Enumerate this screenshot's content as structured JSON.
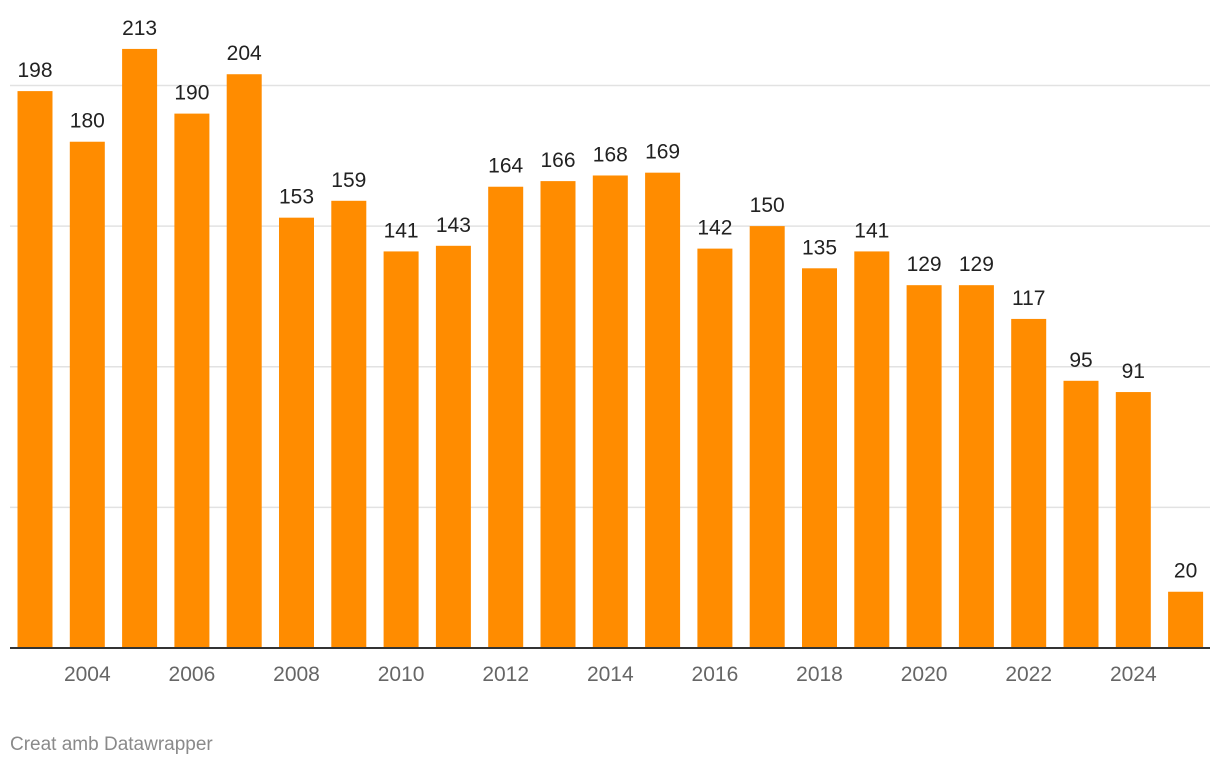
{
  "chart_data": {
    "type": "bar",
    "categories": [
      "2003",
      "2004",
      "2005",
      "2006",
      "2007",
      "2008",
      "2009",
      "2010",
      "2011",
      "2012",
      "2013",
      "2014",
      "2015",
      "2016",
      "2017",
      "2018",
      "2019",
      "2020",
      "2021",
      "2022",
      "2023",
      "2024",
      "2025"
    ],
    "values": [
      198,
      180,
      213,
      190,
      204,
      153,
      159,
      141,
      143,
      164,
      166,
      168,
      169,
      142,
      150,
      135,
      141,
      129,
      129,
      117,
      95,
      91,
      20
    ],
    "x_tick_labels": [
      "2004",
      "2006",
      "2008",
      "2010",
      "2012",
      "2014",
      "2016",
      "2018",
      "2020",
      "2022",
      "2024"
    ],
    "ylim": [
      0,
      200
    ],
    "gridlines": [
      50,
      100,
      150,
      200
    ],
    "bar_color": "#ff8c00",
    "grid": true,
    "data_labels": true
  },
  "footer": {
    "credit": "Creat amb Datawrapper"
  }
}
